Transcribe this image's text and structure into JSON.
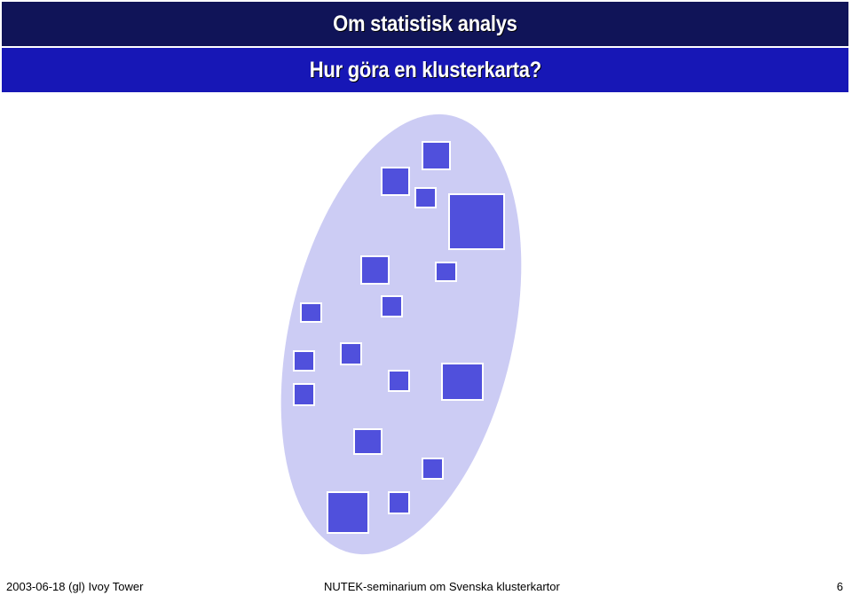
{
  "header": {
    "title": "Om statistisk analys",
    "subtitle": "Hur göra en klusterkarta?"
  },
  "footer": {
    "left": "2003-06-18 (gl) Ivoy Tower",
    "center": "NUTEK-seminarium om Svenska klusterkartor",
    "page_number": "6"
  },
  "colors": {
    "title_band": "#101458",
    "subtitle_band": "#1717b6",
    "ellipse_fill": "#ccccf4",
    "square_fill": "#5050dc",
    "square_border": "#ffffff"
  }
}
